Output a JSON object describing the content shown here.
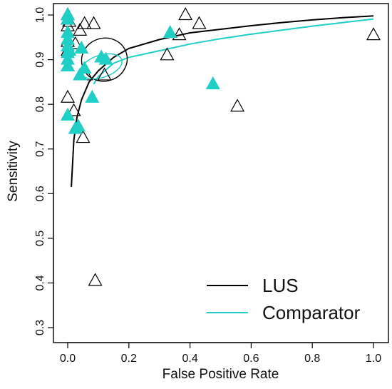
{
  "chart_data": {
    "type": "scatter",
    "xlabel": "False Positive Rate",
    "ylabel": "Sensitivity",
    "xlim": [
      0,
      1
    ],
    "ylim": [
      0.3,
      1.0
    ],
    "x_ticks": [
      "0.0",
      "0.2",
      "0.4",
      "0.6",
      "0.8",
      "1.0"
    ],
    "y_ticks": [
      "0.3",
      "0.4",
      "0.5",
      "0.6",
      "0.7",
      "0.8",
      "0.9",
      "1.0"
    ],
    "legend_position": "bottom-right",
    "series": [
      {
        "name": "LUS",
        "color": "#000000",
        "marker": "open-triangle",
        "points": [
          [
            0.0,
            0.815
          ],
          [
            0.0,
            0.885
          ],
          [
            0.0,
            0.92
          ],
          [
            0.0,
            0.94
          ],
          [
            0.0,
            0.975
          ],
          [
            0.0,
            0.99
          ],
          [
            0.0,
            1.0
          ],
          [
            0.005,
            0.985
          ],
          [
            0.02,
            0.785
          ],
          [
            0.025,
            0.935
          ],
          [
            0.04,
            0.965
          ],
          [
            0.05,
            0.725
          ],
          [
            0.055,
            0.98
          ],
          [
            0.06,
            0.865
          ],
          [
            0.085,
            0.98
          ],
          [
            0.09,
            0.405
          ],
          [
            0.12,
            0.865
          ],
          [
            0.325,
            0.91
          ],
          [
            0.365,
            0.955
          ],
          [
            0.385,
            1.0
          ],
          [
            0.43,
            0.98
          ],
          [
            0.555,
            0.795
          ],
          [
            1.0,
            0.955
          ]
        ],
        "summary_curve": [
          [
            0.012,
            0.615
          ],
          [
            0.02,
            0.72
          ],
          [
            0.03,
            0.77
          ],
          [
            0.045,
            0.81
          ],
          [
            0.07,
            0.85
          ],
          [
            0.1,
            0.875
          ],
          [
            0.15,
            0.905
          ],
          [
            0.2,
            0.925
          ],
          [
            0.3,
            0.945
          ],
          [
            0.4,
            0.96
          ],
          [
            0.5,
            0.968
          ],
          [
            0.6,
            0.976
          ],
          [
            0.7,
            0.983
          ],
          [
            0.8,
            0.989
          ],
          [
            0.9,
            0.994
          ],
          [
            1.0,
            0.998
          ]
        ],
        "summary_point": [
          0.12,
          0.9
        ],
        "confidence_ellipse": {
          "center": [
            0.12,
            0.9
          ],
          "rx": 0.075,
          "ry": 0.048
        }
      },
      {
        "name": "Comparator",
        "color": "#1FCFC5",
        "marker": "filled-triangle",
        "points": [
          [
            0.0,
            0.775
          ],
          [
            0.0,
            0.885
          ],
          [
            0.0,
            0.9
          ],
          [
            0.0,
            0.915
          ],
          [
            0.0,
            0.93
          ],
          [
            0.0,
            0.945
          ],
          [
            0.0,
            0.96
          ],
          [
            0.0,
            0.99
          ],
          [
            0.0,
            1.0
          ],
          [
            0.005,
            0.92
          ],
          [
            0.025,
            0.745
          ],
          [
            0.035,
            0.75
          ],
          [
            0.04,
            0.865
          ],
          [
            0.045,
            0.925
          ],
          [
            0.055,
            0.88
          ],
          [
            0.08,
            0.815
          ],
          [
            0.11,
            0.905
          ],
          [
            0.125,
            0.9
          ],
          [
            0.335,
            0.96
          ],
          [
            0.475,
            0.845
          ]
        ],
        "summary_curve": [
          [
            0.085,
            0.845
          ],
          [
            0.1,
            0.862
          ],
          [
            0.15,
            0.892
          ],
          [
            0.2,
            0.905
          ],
          [
            0.3,
            0.92
          ],
          [
            0.4,
            0.935
          ],
          [
            0.5,
            0.947
          ],
          [
            0.6,
            0.957
          ],
          [
            0.7,
            0.966
          ],
          [
            0.8,
            0.975
          ],
          [
            0.9,
            0.983
          ],
          [
            1.0,
            0.991
          ]
        ],
        "summary_point": [
          0.11,
          0.885
        ],
        "confidence_ellipse": {
          "center": [
            0.11,
            0.885
          ],
          "rx": 0.07,
          "ry": 0.025
        }
      }
    ]
  }
}
